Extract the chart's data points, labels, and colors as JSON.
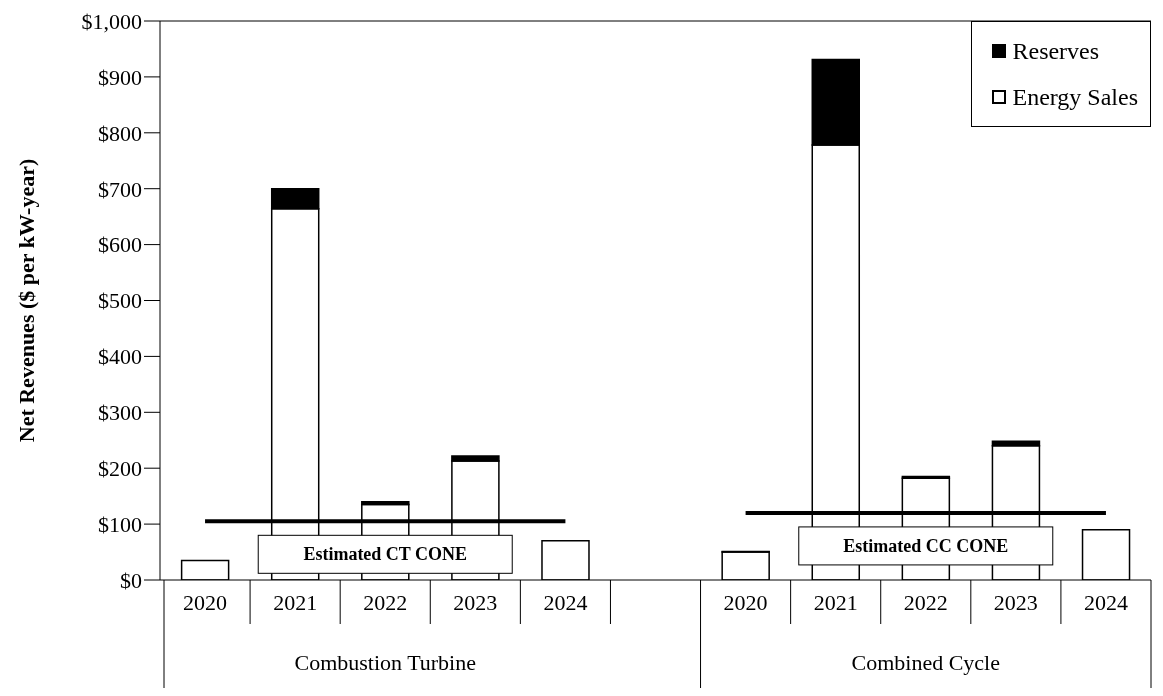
{
  "chart_data": {
    "type": "bar",
    "stacked": true,
    "ylabel": "Net Revenues ($ per kW-year)",
    "categories": [
      "2020",
      "2021",
      "2022",
      "2023",
      "2024",
      null,
      "2020",
      "2021",
      "2022",
      "2023",
      "2024"
    ],
    "series": [
      {
        "name": "Energy Sales",
        "color": "#ffffff",
        "values": [
          35,
          664,
          135,
          213,
          70,
          null,
          50,
          778,
          182,
          240,
          90
        ]
      },
      {
        "name": "Reserves",
        "color": "#000000",
        "values": [
          0,
          36,
          5,
          9,
          0,
          null,
          1,
          153,
          3,
          8,
          0
        ]
      }
    ],
    "ylim": [
      0,
      1000
    ],
    "yticks": [
      {
        "value": 0,
        "label": "$0"
      },
      {
        "value": 100,
        "label": "$100"
      },
      {
        "value": 200,
        "label": "$200"
      },
      {
        "value": 300,
        "label": "$300"
      },
      {
        "value": 400,
        "label": "$400"
      },
      {
        "value": 500,
        "label": "$500"
      },
      {
        "value": 600,
        "label": "$600"
      },
      {
        "value": 700,
        "label": "$700"
      },
      {
        "value": 800,
        "label": "$800"
      },
      {
        "value": 900,
        "label": "$900"
      },
      {
        "value": 1000,
        "label": "$1,000"
      }
    ],
    "ref_lines": [
      {
        "axis": "y",
        "value": 105,
        "label": "Estimated CT CONE",
        "color": "#000000"
      },
      {
        "axis": "y",
        "value": 120,
        "label": "Estimated CC CONE",
        "color": "#000000"
      }
    ],
    "annotations": [
      "Combustion Turbine",
      "Combined Cycle"
    ],
    "legend": "top right",
    "grid": false
  }
}
